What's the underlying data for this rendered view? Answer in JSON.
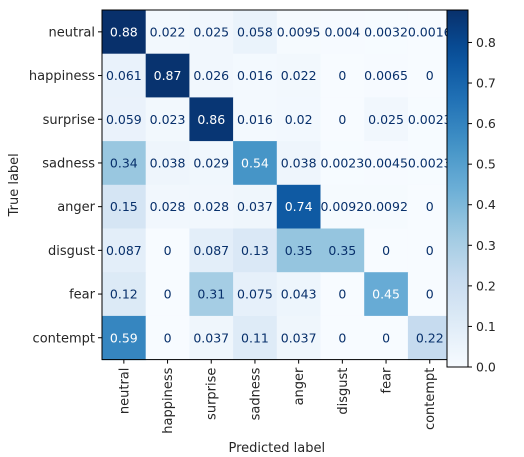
{
  "chart_data": {
    "type": "heatmap",
    "title": "",
    "xlabel": "Predicted label",
    "ylabel": "True label",
    "x_categories": [
      "neutral",
      "happiness",
      "surprise",
      "sadness",
      "anger",
      "disgust",
      "fear",
      "contempt"
    ],
    "y_categories": [
      "neutral",
      "happiness",
      "surprise",
      "sadness",
      "anger",
      "disgust",
      "fear",
      "contempt"
    ],
    "values": [
      [
        0.88,
        0.022,
        0.025,
        0.058,
        0.0095,
        0.004,
        0.0032,
        0.0016
      ],
      [
        0.061,
        0.87,
        0.026,
        0.016,
        0.022,
        0,
        0.0065,
        0
      ],
      [
        0.059,
        0.023,
        0.86,
        0.016,
        0.02,
        0,
        0.025,
        0.0023
      ],
      [
        0.34,
        0.038,
        0.029,
        0.54,
        0.038,
        0.0023,
        0.0045,
        0.0023
      ],
      [
        0.15,
        0.028,
        0.028,
        0.037,
        0.74,
        0.0092,
        0.0092,
        0
      ],
      [
        0.087,
        0,
        0.087,
        0.13,
        0.35,
        0.35,
        0,
        0
      ],
      [
        0.12,
        0,
        0.31,
        0.075,
        0.043,
        0,
        0.45,
        0
      ],
      [
        0.59,
        0,
        0.037,
        0.11,
        0.037,
        0,
        0,
        0.22
      ]
    ],
    "cell_labels": [
      [
        "0.88",
        "0.022",
        "0.025",
        "0.058",
        "0.0095",
        "0.004",
        "0.0032",
        "0.0016"
      ],
      [
        "0.061",
        "0.87",
        "0.026",
        "0.016",
        "0.022",
        "0",
        "0.0065",
        "0"
      ],
      [
        "0.059",
        "0.023",
        "0.86",
        "0.016",
        "0.02",
        "0",
        "0.025",
        "0.0023"
      ],
      [
        "0.34",
        "0.038",
        "0.029",
        "0.54",
        "0.038",
        "0.0023",
        "0.0045",
        "0.0023"
      ],
      [
        "0.15",
        "0.028",
        "0.028",
        "0.037",
        "0.74",
        "0.0092",
        "0.0092",
        "0"
      ],
      [
        "0.087",
        "0",
        "0.087",
        "0.13",
        "0.35",
        "0.35",
        "0",
        "0"
      ],
      [
        "0.12",
        "0",
        "0.31",
        "0.075",
        "0.043",
        "0",
        "0.45",
        "0"
      ],
      [
        "0.59",
        "0",
        "0.037",
        "0.11",
        "0.037",
        "0",
        "0",
        "0.22"
      ]
    ],
    "colorbar": {
      "min": 0,
      "max": 0.88,
      "ticks": [
        0.0,
        0.1,
        0.2,
        0.3,
        0.4,
        0.5,
        0.6,
        0.7,
        0.8
      ],
      "tick_labels": [
        "0.0",
        "0.1",
        "0.2",
        "0.3",
        "0.4",
        "0.5",
        "0.6",
        "0.7",
        "0.8"
      ],
      "colormap": "Blues"
    },
    "grid": false
  }
}
